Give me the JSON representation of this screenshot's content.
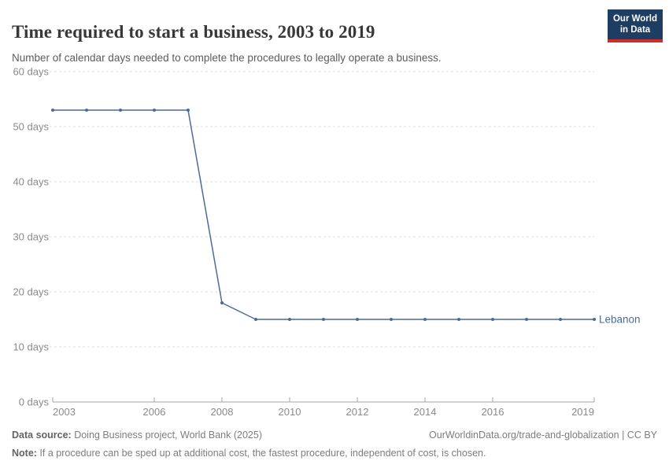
{
  "header": {
    "title": "Time required to start a business, 2003 to 2019",
    "subtitle": "Number of calendar days needed to complete the procedures to legally operate a business.",
    "logo": {
      "line1": "Our World",
      "line2": "in Data"
    }
  },
  "chart_data": {
    "type": "line",
    "title": "Time required to start a business, 2003 to 2019",
    "xlabel": "",
    "ylabel": "",
    "x": [
      2003,
      2004,
      2005,
      2006,
      2007,
      2008,
      2009,
      2010,
      2011,
      2012,
      2013,
      2014,
      2015,
      2016,
      2017,
      2018,
      2019
    ],
    "series": [
      {
        "name": "Lebanon",
        "values": [
          53,
          53,
          53,
          53,
          53,
          18,
          15,
          15,
          15,
          15,
          15,
          15,
          15,
          15,
          15,
          15,
          15
        ]
      }
    ],
    "ylim": [
      0,
      60
    ],
    "yticks": [
      0,
      10,
      20,
      30,
      40,
      50,
      60
    ],
    "ytick_suffix": " days",
    "xticks": [
      2003,
      2006,
      2008,
      2010,
      2012,
      2014,
      2016,
      2019
    ],
    "grid": true,
    "legend_position": "end-of-line",
    "line_color": "#4C6A9C"
  },
  "colors": {
    "line": "#4C6A9C",
    "logo_navy": "#1d3d63",
    "logo_red": "#cf2e28",
    "gridline": "#dcdcdc",
    "axis": "#a5a5a5",
    "tick_text": "#8a8a8a"
  },
  "footer": {
    "source_label": "Data source:",
    "source_value": " Doing Business project, World Bank (2025)",
    "citation": "OurWorldinData.org/trade-and-globalization | CC BY",
    "note_label": "Note:",
    "note_value": " If a procedure can be sped up at additional cost, the fastest procedure, independent of cost, is chosen."
  }
}
